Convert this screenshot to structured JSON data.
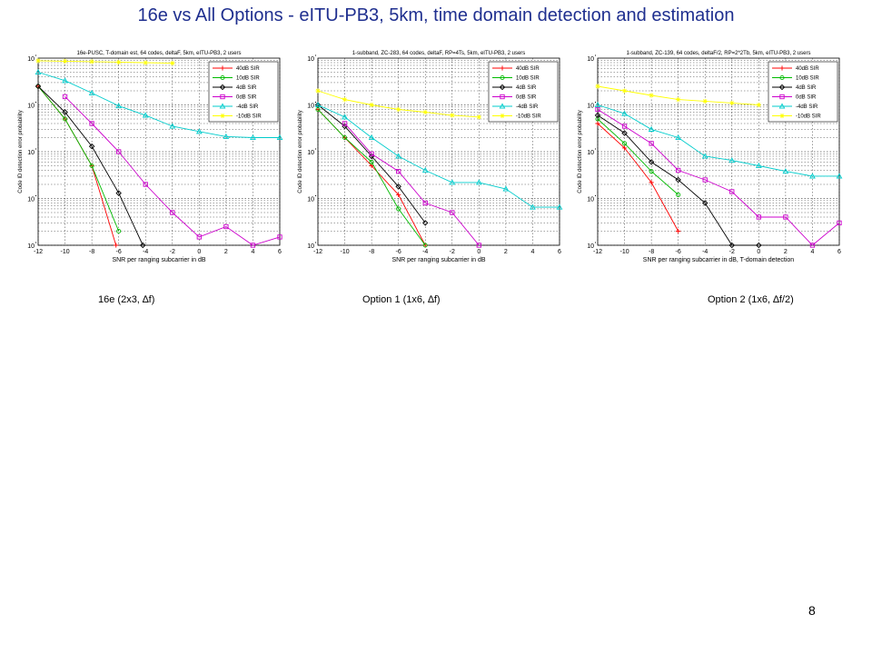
{
  "slide": {
    "title": "16e vs All Options - eITU-PB3, 5km, time domain detection and estimation",
    "page_number": "8"
  },
  "captions": [
    "16e (2x3, ∆f)",
    "Option 1 (1x6, ∆f)",
    "Option 2 (1x6, ∆f/2)"
  ],
  "series_style": [
    {
      "color": "#ff0000",
      "marker": "plus"
    },
    {
      "color": "#00bb00",
      "marker": "circle"
    },
    {
      "color": "#000000",
      "marker": "diamond"
    },
    {
      "color": "#cc00cc",
      "marker": "square"
    },
    {
      "color": "#00cccc",
      "marker": "triangle"
    },
    {
      "color": "#ffff00",
      "marker": "star"
    }
  ],
  "chart_data": [
    {
      "type": "line",
      "title": "16e-PUSC, T-domain est, 64 codes, deltaF, 5km, eITU-PB3, 2 users",
      "xlabel": "SNR per ranging subcarrier in dB",
      "ylabel": "Code ID detection error probability",
      "xlim": [
        -12,
        6
      ],
      "xticks": [
        -12,
        -10,
        -8,
        -6,
        -4,
        -2,
        0,
        2,
        4,
        6
      ],
      "ylim_log10": [
        -4,
        0
      ],
      "ytick_labels": [
        "10",
        "10",
        "10",
        "10",
        "10"
      ],
      "grid": true,
      "legend_position": "top-right",
      "series": [
        {
          "name": "40dB SIR",
          "x": [
            -12,
            -10,
            -8,
            -6.2
          ],
          "y": [
            0.25,
            0.05,
            0.005,
            0.0001
          ]
        },
        {
          "name": "10dB SIR",
          "x": [
            -12,
            -10,
            -8,
            -6
          ],
          "y": [
            0.25,
            0.05,
            0.005,
            0.0002
          ]
        },
        {
          "name": "4dB SIR",
          "x": [
            -12,
            -10,
            -8,
            -6,
            -4.2
          ],
          "y": [
            0.25,
            0.07,
            0.013,
            0.0013,
            0.0001
          ]
        },
        {
          "name": "0dB SIR",
          "x": [
            -10,
            -8,
            -6,
            -4,
            -2,
            0,
            2,
            4,
            6
          ],
          "y": [
            0.15,
            0.04,
            0.01,
            0.002,
            0.0005,
            0.00015,
            0.00025,
            0.0001,
            0.00015
          ]
        },
        {
          "name": "-4dB SIR",
          "x": [
            -12,
            -10,
            -8,
            -6,
            -4,
            -2,
            0,
            2,
            4,
            6
          ],
          "y": [
            0.5,
            0.33,
            0.18,
            0.095,
            0.06,
            0.035,
            0.027,
            0.021,
            0.02,
            0.02
          ]
        },
        {
          "name": "-10dB SIR",
          "x": [
            -12,
            -10,
            -8,
            -6,
            -4,
            -2
          ],
          "y": [
            0.88,
            0.86,
            0.84,
            0.82,
            0.8,
            0.78
          ]
        }
      ]
    },
    {
      "type": "line",
      "title": "1-subband, ZC-283, 64 codes, deltaF, RP=4Ts, 5km, eITU-PB3, 2 users",
      "xlabel": "SNR per ranging subcarrier in dB",
      "ylabel": "Code ID detection error probability",
      "xlim": [
        -12,
        6
      ],
      "xticks": [
        -12,
        -10,
        -8,
        -6,
        -4,
        -2,
        0,
        2,
        4,
        6
      ],
      "ylim_log10": [
        -4,
        0
      ],
      "ytick_labels": [
        "10",
        "10",
        "10",
        "10",
        "10"
      ],
      "grid": true,
      "legend_position": "top-right",
      "series": [
        {
          "name": "40dB SIR",
          "x": [
            -12,
            -10,
            -8,
            -6,
            -4
          ],
          "y": [
            0.08,
            0.02,
            0.005,
            0.0012,
            0.0001
          ]
        },
        {
          "name": "10dB SIR",
          "x": [
            -12,
            -10,
            -8,
            -6,
            -4
          ],
          "y": [
            0.08,
            0.02,
            0.006,
            0.0006,
            0.0001
          ]
        },
        {
          "name": "4dB SIR",
          "x": [
            -12,
            -10,
            -8,
            -6,
            -4
          ],
          "y": [
            0.1,
            0.035,
            0.008,
            0.0018,
            0.0003
          ]
        },
        {
          "name": "0dB SIR",
          "x": [
            -10,
            -8,
            -6,
            -4,
            -2,
            0
          ],
          "y": [
            0.04,
            0.009,
            0.0038,
            0.0008,
            0.0005,
            0.0001
          ]
        },
        {
          "name": "-4dB SIR",
          "x": [
            -12,
            -10,
            -8,
            -6,
            -4,
            -2,
            0,
            2,
            4,
            6
          ],
          "y": [
            0.1,
            0.055,
            0.02,
            0.008,
            0.004,
            0.0022,
            0.0022,
            0.0016,
            0.00065,
            0.00065
          ]
        },
        {
          "name": "-10dB SIR",
          "x": [
            -12,
            -10,
            -8,
            -6,
            -4,
            -2,
            0
          ],
          "y": [
            0.2,
            0.13,
            0.1,
            0.08,
            0.07,
            0.06,
            0.055
          ]
        }
      ]
    },
    {
      "type": "line",
      "title": "1-subband, ZC-139, 64 codes, deltaF/2, RP=2*2Tb, 5km, eITU-PB3, 2 users",
      "xlabel": "SNR per ranging subcarrier in dB, T-domain detection",
      "ylabel": "Code ID detection error probability",
      "xlim": [
        -12,
        6
      ],
      "xticks": [
        -12,
        -10,
        -8,
        -6,
        -4,
        -2,
        0,
        2,
        4,
        6
      ],
      "ylim_log10": [
        -4,
        0
      ],
      "ytick_labels": [
        "10",
        "10",
        "10",
        "10",
        "10"
      ],
      "grid": true,
      "legend_position": "top-right",
      "series": [
        {
          "name": "40dB SIR",
          "x": [
            -12,
            -10,
            -8,
            -6
          ],
          "y": [
            0.04,
            0.012,
            0.0022,
            0.0002
          ]
        },
        {
          "name": "10dB SIR",
          "x": [
            -12,
            -10,
            -8,
            -6
          ],
          "y": [
            0.05,
            0.015,
            0.0038,
            0.0012
          ]
        },
        {
          "name": "4dB SIR",
          "x": [
            -12,
            -10,
            -8,
            -6,
            -4,
            -2,
            0
          ],
          "y": [
            0.06,
            0.025,
            0.006,
            0.0025,
            0.0008,
            0.0001,
            0.0001
          ]
        },
        {
          "name": "0dB SIR",
          "x": [
            -12,
            -10,
            -8,
            -6,
            -4,
            -2,
            0,
            2,
            4,
            6
          ],
          "y": [
            0.08,
            0.035,
            0.015,
            0.004,
            0.0025,
            0.0014,
            0.0004,
            0.0004,
            0.0001,
            0.0003
          ]
        },
        {
          "name": "-4dB SIR",
          "x": [
            -12,
            -10,
            -8,
            -6,
            -4,
            -2,
            0,
            2,
            4,
            6
          ],
          "y": [
            0.1,
            0.065,
            0.03,
            0.02,
            0.008,
            0.0065,
            0.005,
            0.0038,
            0.003,
            0.003
          ]
        },
        {
          "name": "-10dB SIR",
          "x": [
            -12,
            -10,
            -8,
            -6,
            -4,
            -2,
            0
          ],
          "y": [
            0.25,
            0.2,
            0.16,
            0.13,
            0.12,
            0.11,
            0.1
          ]
        }
      ]
    }
  ]
}
